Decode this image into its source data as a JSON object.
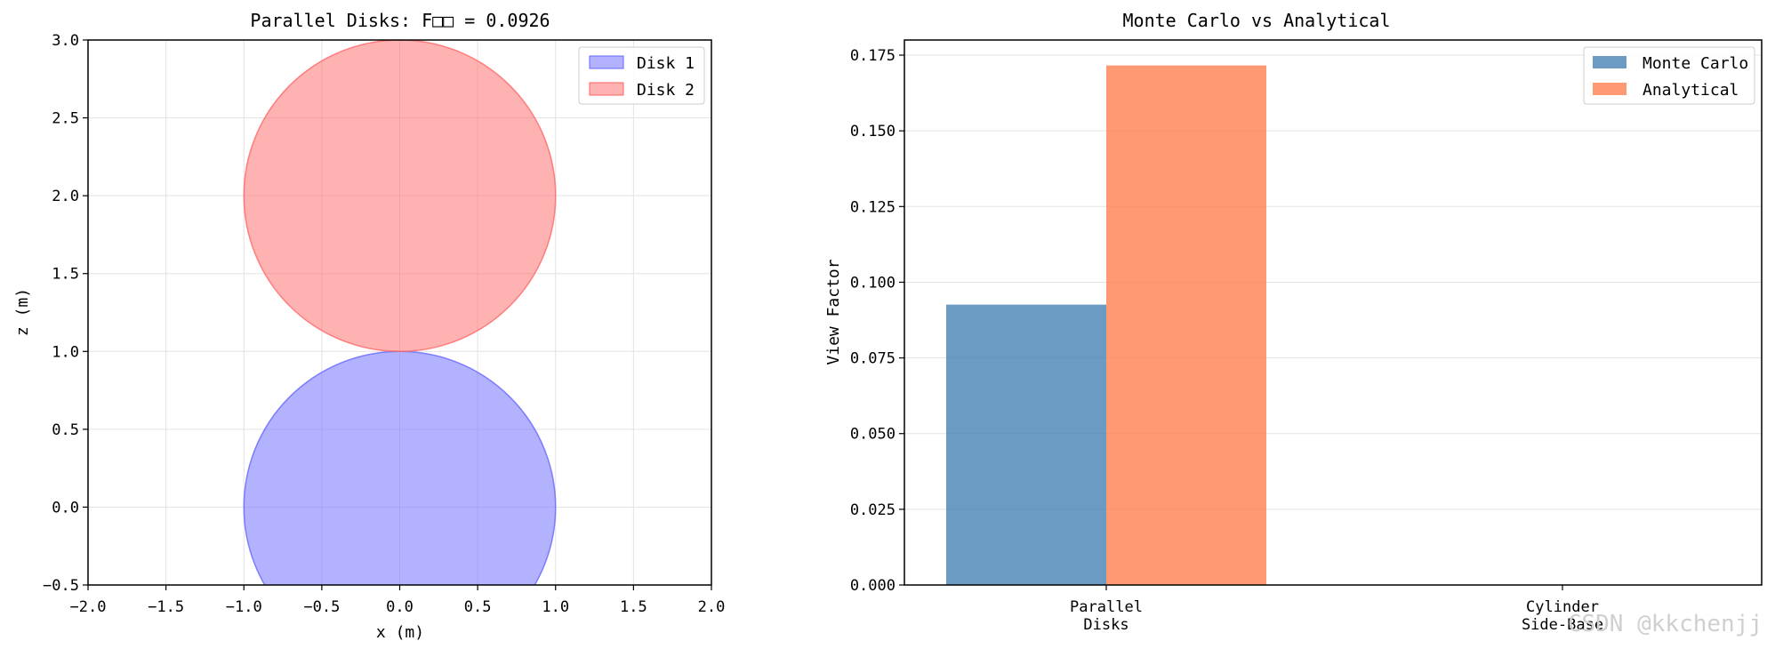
{
  "chart_data": [
    {
      "type": "scatter",
      "title": "Parallel Disks: F□□ = 0.0926",
      "xlabel": "x (m)",
      "ylabel": "z (m)",
      "xlim": [
        -2.0,
        2.0
      ],
      "ylim": [
        -0.5,
        3.0
      ],
      "x_ticks": [
        "−2.0",
        "−1.5",
        "−1.0",
        "−0.5",
        "0.0",
        "0.5",
        "1.0",
        "1.5",
        "2.0"
      ],
      "y_ticks": [
        "−0.5",
        "0.0",
        "0.5",
        "1.0",
        "1.5",
        "2.0",
        "2.5",
        "3.0"
      ],
      "grid": true,
      "legend_position": "top-right",
      "series": [
        {
          "name": "Disk 1",
          "center": [
            0.0,
            0.0
          ],
          "radius": 1.0,
          "color": "#6666ff"
        },
        {
          "name": "Disk 2",
          "center": [
            0.0,
            2.0
          ],
          "radius": 1.0,
          "color": "#ff6666"
        }
      ]
    },
    {
      "type": "bar",
      "title": "Monte Carlo vs Analytical",
      "xlabel": "",
      "ylabel": "View Factor",
      "categories": [
        "Parallel Disks",
        "Cylinder Side-Base"
      ],
      "category_label_lines": [
        [
          "Parallel",
          "Disks"
        ],
        [
          "Cylinder",
          "Side-Base"
        ]
      ],
      "ylim": [
        0.0,
        0.18
      ],
      "y_ticks": [
        "0.000",
        "0.025",
        "0.050",
        "0.075",
        "0.100",
        "0.125",
        "0.150",
        "0.175"
      ],
      "grid": true,
      "legend_position": "top-right",
      "series": [
        {
          "name": "Monte Carlo",
          "values": [
            0.0926,
            0.0
          ],
          "color": "#4682b4"
        },
        {
          "name": "Analytical",
          "values": [
            0.1716,
            0.0
          ],
          "color": "#ff7f50"
        }
      ]
    }
  ],
  "watermark": "CSDN @kkchenjj"
}
